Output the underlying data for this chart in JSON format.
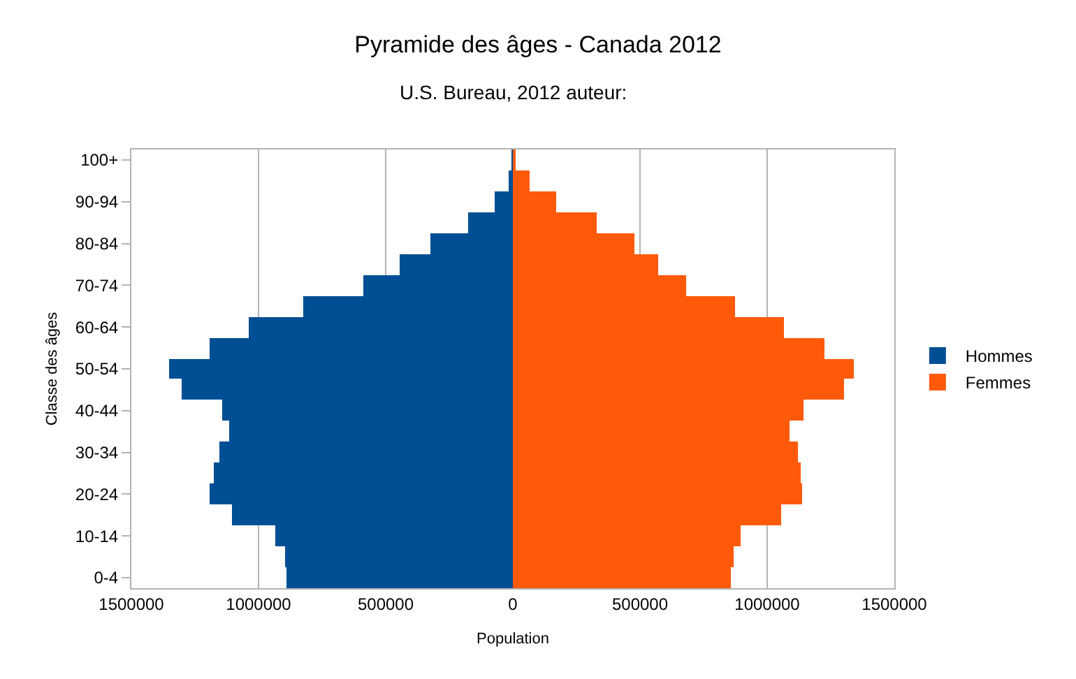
{
  "chart_data": {
    "type": "bar",
    "orientation": "horizontal",
    "stacked": true,
    "title": "Pyramide des âges - Canada 2012",
    "subtitle": "U.S. Bureau, 2012 auteur:",
    "xlabel": "Population",
    "ylabel": "Classe des âges",
    "categories": [
      "100+",
      null,
      "90-94",
      null,
      "80-84",
      null,
      "70-74",
      null,
      "60-64",
      null,
      "50-54",
      null,
      "40-44",
      null,
      "30-34",
      null,
      "20-24",
      null,
      "10-14",
      null,
      "0-4"
    ],
    "series": [
      {
        "name": "Hommes",
        "color": "#004f94",
        "values": [
          -2000,
          -18000,
          -71000,
          -174000,
          -322000,
          -445000,
          -590000,
          -826000,
          -1037000,
          -1194000,
          -1350000,
          -1300000,
          -1145000,
          -1117000,
          -1156000,
          -1178000,
          -1190000,
          -1104000,
          -936000,
          -897000,
          -890000
        ]
      },
      {
        "name": "Femmes",
        "color": "#ff5a0a",
        "values": [
          7000,
          65000,
          171000,
          327000,
          480000,
          571000,
          679000,
          871000,
          1064000,
          1225000,
          1342000,
          1303000,
          1141000,
          1086000,
          1119000,
          1130000,
          1135000,
          1055000,
          896000,
          869000,
          858000
        ]
      }
    ],
    "xlim": [
      -1500000,
      1500000
    ],
    "xticks": [
      {
        "value": -1500000,
        "label": "1500000"
      },
      {
        "value": -1000000,
        "label": "1000000"
      },
      {
        "value": -500000,
        "label": "500000"
      },
      0,
      500000,
      1000000,
      1500000
    ],
    "grid": "x",
    "legend": "right"
  }
}
